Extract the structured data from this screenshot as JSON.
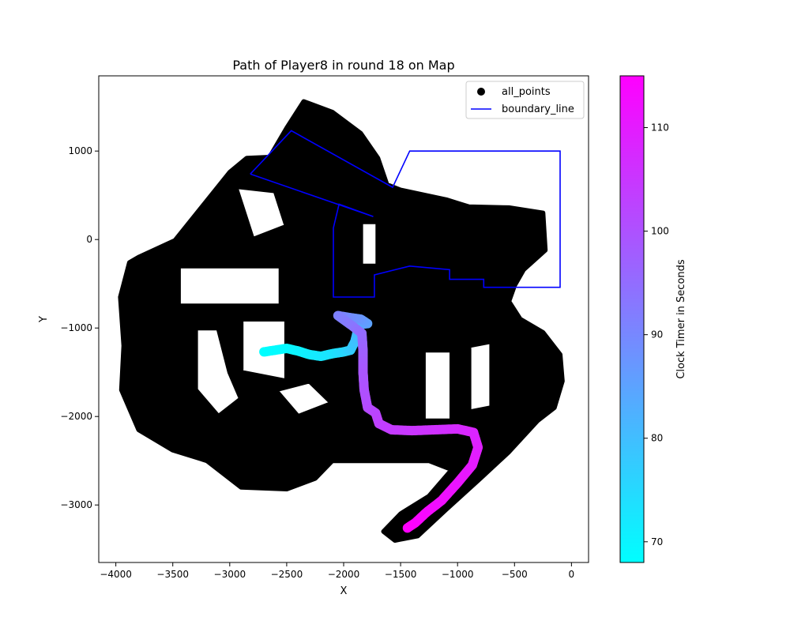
{
  "chart_data": {
    "type": "scatter",
    "title": "Path of Player8 in round 18 on Map",
    "xlabel": "X",
    "ylabel": "Y",
    "xlim": [
      -4150,
      150
    ],
    "ylim": [
      -3650,
      1850
    ],
    "xticks": [
      -4000,
      -3500,
      -3000,
      -2500,
      -2000,
      -1500,
      -1000,
      -500,
      0
    ],
    "yticks": [
      -3000,
      -2000,
      -1000,
      0,
      1000
    ],
    "grid": false,
    "legend": {
      "placement": "top-right",
      "entries": [
        {
          "label": "all_points",
          "marker": "dot",
          "color": "#000000"
        },
        {
          "label": "boundary_line",
          "marker": "line",
          "color": "#0000ff"
        }
      ]
    },
    "colorbar": {
      "label": "Clock Timer in Seconds",
      "range": [
        68,
        115
      ],
      "ticks": [
        70,
        80,
        90,
        100,
        110
      ],
      "colormap": [
        "#00ffff",
        "#ff00ff"
      ]
    },
    "series": [
      {
        "name": "all_points",
        "style": "filled-region-approx",
        "color": "#000000",
        "polygons": [
          [
            [
              -3880,
              -260
            ],
            [
              -3800,
              -200
            ],
            [
              -3480,
              -10
            ],
            [
              -3000,
              760
            ],
            [
              -2850,
              920
            ],
            [
              -2650,
              930
            ],
            [
              -2500,
              1260
            ],
            [
              -2350,
              1560
            ],
            [
              -2100,
              1440
            ],
            [
              -1850,
              1200
            ],
            [
              -1700,
              920
            ],
            [
              -1620,
              620
            ],
            [
              -1500,
              560
            ],
            [
              -1100,
              450
            ],
            [
              -900,
              370
            ],
            [
              -550,
              360
            ],
            [
              -250,
              300
            ],
            [
              -230,
              -120
            ],
            [
              -420,
              -340
            ],
            [
              -500,
              -520
            ],
            [
              -550,
              -700
            ],
            [
              -450,
              -900
            ],
            [
              -250,
              -1050
            ],
            [
              -100,
              -1300
            ],
            [
              -80,
              -1600
            ],
            [
              -150,
              -1900
            ],
            [
              -300,
              -2050
            ],
            [
              -550,
              -2400
            ],
            [
              -800,
              -2700
            ],
            [
              -1100,
              -3050
            ],
            [
              -1350,
              -3350
            ],
            [
              -1550,
              -3400
            ],
            [
              -1650,
              -3300
            ],
            [
              -1500,
              -3100
            ],
            [
              -1250,
              -2900
            ],
            [
              -1050,
              -2600
            ],
            [
              -1250,
              -2500
            ],
            [
              -1700,
              -2500
            ],
            [
              -2100,
              -2500
            ],
            [
              -2250,
              -2700
            ],
            [
              -2500,
              -2820
            ],
            [
              -2900,
              -2800
            ],
            [
              -3200,
              -2500
            ],
            [
              -3500,
              -2380
            ],
            [
              -3800,
              -2150
            ],
            [
              -3950,
              -1700
            ],
            [
              -3930,
              -1200
            ],
            [
              -3960,
              -650
            ]
          ]
        ],
        "holes": [
          [
            [
              -3450,
              -300
            ],
            [
              -2550,
              -300
            ],
            [
              -2550,
              -750
            ],
            [
              -3450,
              -750
            ]
          ],
          [
            [
              -3300,
              -1000
            ],
            [
              -3100,
              -1000
            ],
            [
              -3000,
              -1500
            ],
            [
              -2900,
              -1800
            ],
            [
              -3100,
              -2000
            ],
            [
              -3300,
              -1700
            ]
          ],
          [
            [
              -2900,
              -900
            ],
            [
              -2500,
              -900
            ],
            [
              -2500,
              -1600
            ],
            [
              -2900,
              -1500
            ]
          ],
          [
            [
              -2600,
              -1700
            ],
            [
              -2300,
              -1600
            ],
            [
              -2100,
              -1850
            ],
            [
              -2400,
              -2000
            ]
          ],
          [
            [
              -1300,
              -1250
            ],
            [
              -1050,
              -1250
            ],
            [
              -1050,
              -2050
            ],
            [
              -1300,
              -2050
            ]
          ],
          [
            [
              -900,
              -1200
            ],
            [
              -700,
              -1150
            ],
            [
              -700,
              -1900
            ],
            [
              -900,
              -1950
            ]
          ],
          [
            [
              -1850,
              200
            ],
            [
              -1700,
              200
            ],
            [
              -1700,
              -300
            ],
            [
              -1850,
              -300
            ]
          ],
          [
            [
              -2950,
              600
            ],
            [
              -2600,
              550
            ],
            [
              -2500,
              150
            ],
            [
              -2800,
              0
            ]
          ]
        ]
      },
      {
        "name": "boundary_line",
        "style": "line",
        "color": "#0000ff",
        "points": [
          [
            -2820,
            740
          ],
          [
            -2460,
            1230
          ],
          [
            -1570,
            590
          ],
          [
            -1420,
            1000
          ],
          [
            -100,
            1000
          ],
          [
            -100,
            -540
          ],
          [
            -770,
            -540
          ],
          [
            -770,
            -450
          ],
          [
            -1070,
            -450
          ],
          [
            -1070,
            -340
          ],
          [
            -1420,
            -300
          ],
          [
            -1730,
            -400
          ],
          [
            -1730,
            -650
          ],
          [
            -2090,
            -650
          ],
          [
            -2090,
            130
          ],
          [
            -2040,
            400
          ],
          [
            -1740,
            260
          ],
          [
            -2820,
            740
          ]
        ]
      },
      {
        "name": "player_path",
        "style": "colored-markers",
        "color_by": "clock_timer",
        "points": [
          {
            "x": -2700,
            "y": -1270,
            "t": 68
          },
          {
            "x": -2600,
            "y": -1250,
            "t": 68.5
          },
          {
            "x": -2500,
            "y": -1230,
            "t": 69
          },
          {
            "x": -2400,
            "y": -1260,
            "t": 70
          },
          {
            "x": -2300,
            "y": -1300,
            "t": 71
          },
          {
            "x": -2200,
            "y": -1320,
            "t": 72
          },
          {
            "x": -2100,
            "y": -1290,
            "t": 73
          },
          {
            "x": -2000,
            "y": -1270,
            "t": 75
          },
          {
            "x": -1940,
            "y": -1250,
            "t": 77
          },
          {
            "x": -1900,
            "y": -1150,
            "t": 79
          },
          {
            "x": -1880,
            "y": -1040,
            "t": 81
          },
          {
            "x": -1850,
            "y": -960,
            "t": 83
          },
          {
            "x": -1790,
            "y": -950,
            "t": 85
          },
          {
            "x": -1850,
            "y": -900,
            "t": 87
          },
          {
            "x": -1960,
            "y": -880,
            "t": 89
          },
          {
            "x": -2050,
            "y": -860,
            "t": 91
          },
          {
            "x": -1920,
            "y": -980,
            "t": 93
          },
          {
            "x": -1840,
            "y": -1060,
            "t": 95
          },
          {
            "x": -1830,
            "y": -1250,
            "t": 97
          },
          {
            "x": -1830,
            "y": -1500,
            "t": 99
          },
          {
            "x": -1820,
            "y": -1700,
            "t": 100
          },
          {
            "x": -1790,
            "y": -1900,
            "t": 101
          },
          {
            "x": -1720,
            "y": -1960,
            "t": 102
          },
          {
            "x": -1690,
            "y": -2080,
            "t": 103
          },
          {
            "x": -1580,
            "y": -2150,
            "t": 104
          },
          {
            "x": -1400,
            "y": -2160,
            "t": 105
          },
          {
            "x": -1200,
            "y": -2150,
            "t": 106
          },
          {
            "x": -1000,
            "y": -2140,
            "t": 107
          },
          {
            "x": -860,
            "y": -2180,
            "t": 108
          },
          {
            "x": -820,
            "y": -2350,
            "t": 109
          },
          {
            "x": -870,
            "y": -2550,
            "t": 110
          },
          {
            "x": -1000,
            "y": -2750,
            "t": 111
          },
          {
            "x": -1140,
            "y": -2950,
            "t": 112
          },
          {
            "x": -1270,
            "y": -3080,
            "t": 113
          },
          {
            "x": -1370,
            "y": -3200,
            "t": 114
          },
          {
            "x": -1440,
            "y": -3260,
            "t": 115
          }
        ]
      }
    ]
  }
}
